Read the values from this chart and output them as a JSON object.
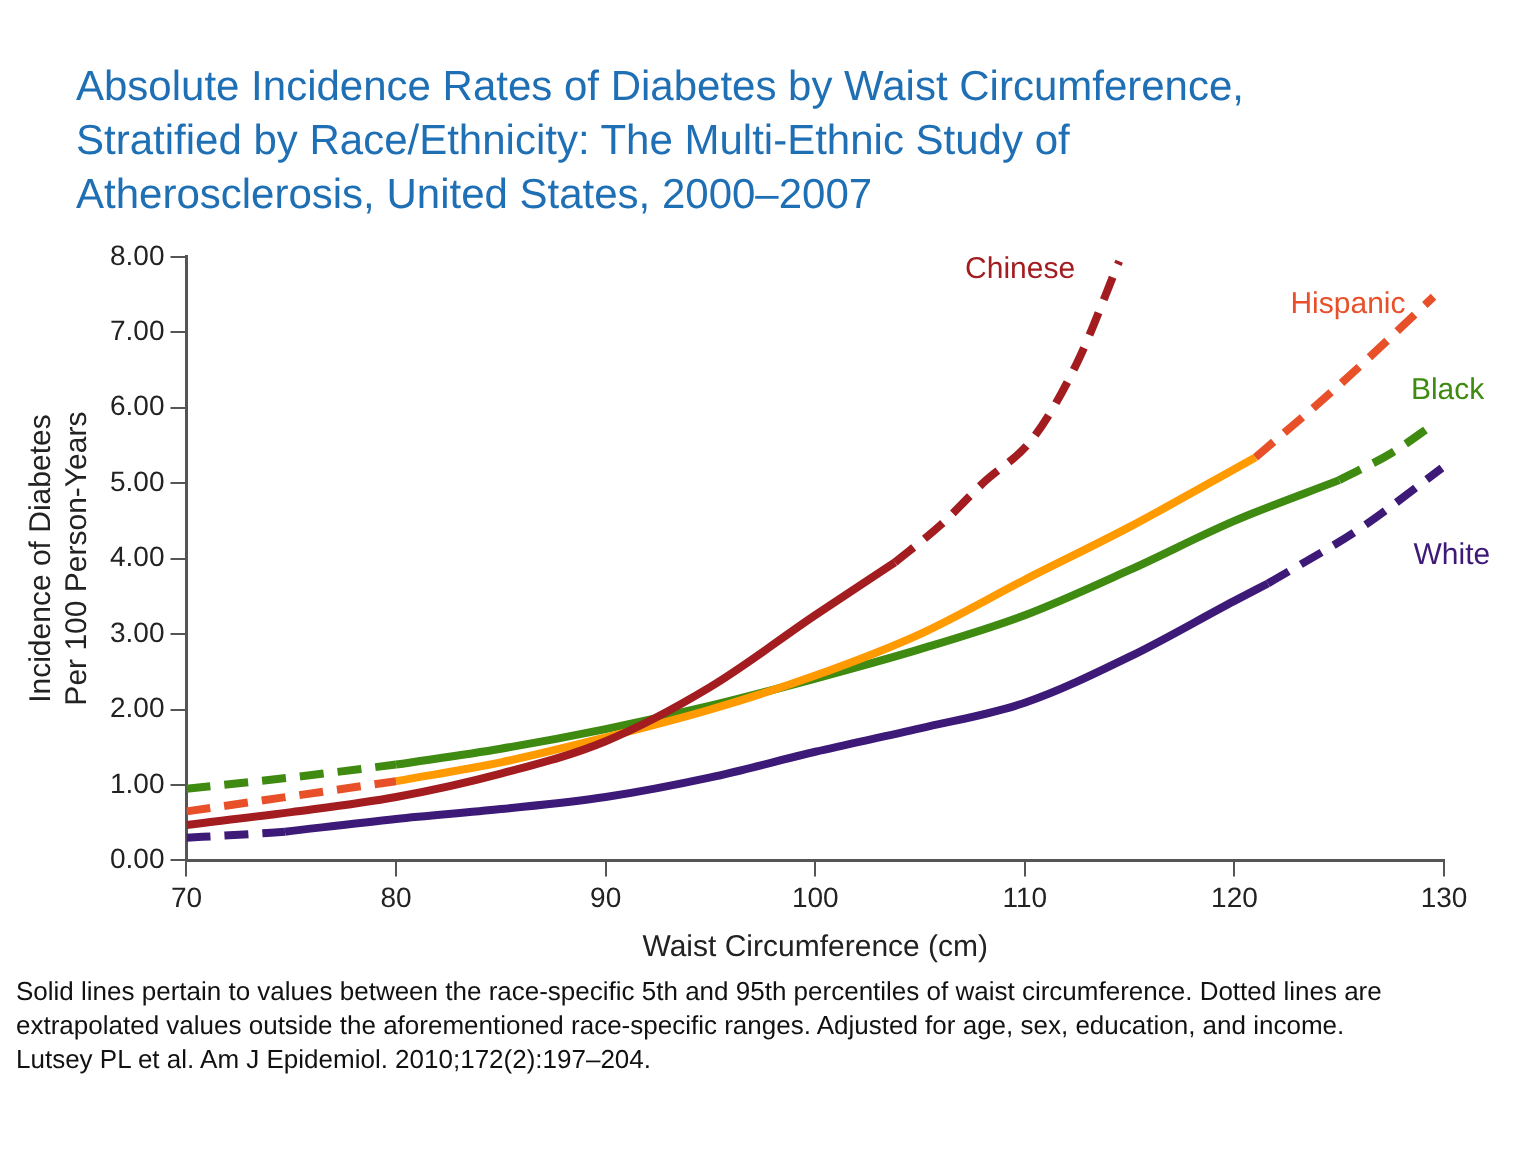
{
  "chart_data": {
    "type": "line",
    "title": "Absolute Incidence Rates of Diabetes by Waist Circumference, Stratified by Race/Ethnicity: The Multi-Ethnic Study of Atherosclerosis, United States, 2000–2007",
    "xlabel": "Waist Circumference (cm)",
    "ylabel": "Incidence of Diabetes\nPer 100 Person-Years",
    "xlim": [
      70,
      130
    ],
    "xticks": [
      70,
      80,
      90,
      100,
      110,
      120,
      130
    ],
    "ylim": [
      0,
      8
    ],
    "yticks": [
      {
        "value": 0,
        "label": "0.00"
      },
      {
        "value": 1,
        "label": "1.00"
      },
      {
        "value": 2,
        "label": "2.00"
      },
      {
        "value": 3,
        "label": "3.00"
      },
      {
        "value": 4,
        "label": "4.00"
      },
      {
        "value": 5,
        "label": "5.00"
      },
      {
        "value": 6,
        "label": "6.00"
      },
      {
        "value": 7,
        "label": "7.00"
      },
      {
        "value": 8,
        "label": "8.00"
      }
    ],
    "grid": false,
    "legend": false,
    "marker": "none",
    "series": [
      {
        "line_style": "solid",
        "color": "#a31d20",
        "x": [
          70,
          75,
          80,
          85,
          90,
          95,
          100,
          103.8
        ],
        "values": [
          0.47,
          0.64,
          0.84,
          1.15,
          1.58,
          2.3,
          3.25,
          3.95
        ]
      },
      {
        "line_style": "dashed",
        "name": "Chinese",
        "color": "#a31d20",
        "x": [
          103.8,
          106,
          108,
          110.4,
          112.5,
          114.5
        ],
        "values": [
          3.95,
          4.45,
          5.0,
          5.6,
          6.6,
          7.94
        ]
      },
      {
        "line_style": "dashed",
        "color": "#e8502a",
        "x": [
          70,
          75,
          80
        ],
        "values": [
          0.65,
          0.85,
          1.05
        ]
      },
      {
        "line_style": "solid",
        "color": "#ff9a00",
        "x": [
          80,
          85,
          90,
          95,
          100,
          105,
          110,
          115,
          121
        ],
        "values": [
          1.05,
          1.3,
          1.63,
          2.0,
          2.45,
          3.0,
          3.72,
          4.42,
          5.34
        ]
      },
      {
        "line_style": "dashed",
        "name": "Hispanic",
        "color": "#e8502a",
        "x": [
          121,
          125,
          129.5
        ],
        "values": [
          5.34,
          6.3,
          7.47
        ]
      },
      {
        "line_style": "dashed",
        "color": "#3f8a10",
        "x": [
          70,
          75,
          80
        ],
        "values": [
          0.95,
          1.1,
          1.27
        ]
      },
      {
        "line_style": "solid",
        "color": "#3f8a10",
        "x": [
          80,
          85,
          90,
          95,
          100,
          105,
          110,
          115,
          120,
          125
        ],
        "values": [
          1.27,
          1.48,
          1.74,
          2.05,
          2.41,
          2.8,
          3.25,
          3.85,
          4.5,
          5.04
        ]
      },
      {
        "line_style": "dashed",
        "name": "Black",
        "color": "#3f8a10",
        "x": [
          125,
          127.5,
          129.6
        ],
        "values": [
          5.04,
          5.4,
          5.8
        ]
      },
      {
        "line_style": "dashed",
        "color": "#3d1a78",
        "x": [
          70,
          72.5,
          74.7
        ],
        "values": [
          0.3,
          0.34,
          0.38
        ]
      },
      {
        "line_style": "solid",
        "color": "#3d1a78",
        "x": [
          74.7,
          80,
          85,
          90,
          95,
          100,
          105,
          110,
          115,
          120,
          121.6
        ],
        "values": [
          0.38,
          0.55,
          0.68,
          0.84,
          1.1,
          1.44,
          1.75,
          2.09,
          2.7,
          3.44,
          3.67
        ]
      },
      {
        "line_style": "dashed",
        "name": "White",
        "color": "#3d1a78",
        "x": [
          121.6,
          126,
          129.9
        ],
        "values": [
          3.67,
          4.4,
          5.2
        ]
      }
    ],
    "annotations": [
      "Solid lines pertain to values between the race-specific 5th and 95th percentiles of waist circumference. Dotted lines are extrapolated values outside the aforementioned race-specific ranges. Adjusted for age, sex, education, and income.",
      "Lutsey PL et al. Am J Epidemiol. 2010;172(2):197–204."
    ]
  }
}
